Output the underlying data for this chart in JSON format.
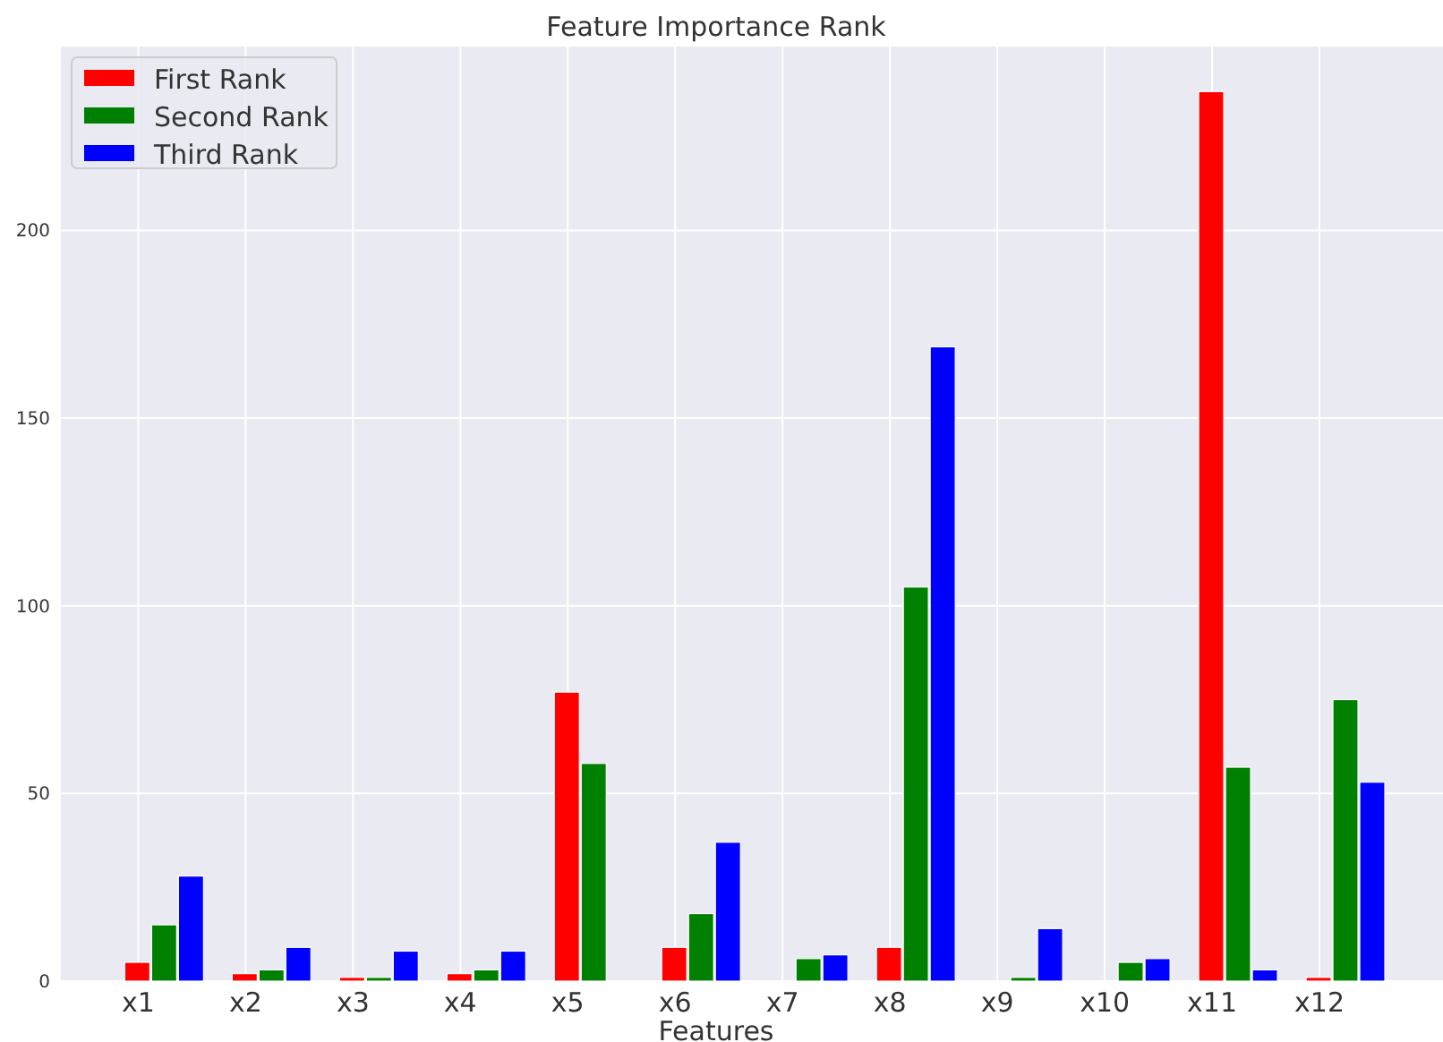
{
  "chart_data": {
    "type": "bar",
    "title": "Feature Importance Rank",
    "xlabel": "Features",
    "categories": [
      "x1",
      "x2",
      "x3",
      "x4",
      "x5",
      "x6",
      "x7",
      "x8",
      "x9",
      "x10",
      "x11",
      "x12"
    ],
    "series": [
      {
        "name": "First Rank",
        "color": "#ff0000",
        "values": [
          5,
          2,
          1,
          2,
          77,
          9,
          0,
          9,
          0,
          0,
          237,
          1
        ]
      },
      {
        "name": "Second Rank",
        "color": "#008000",
        "values": [
          15,
          3,
          1,
          3,
          58,
          18,
          6,
          105,
          1,
          5,
          57,
          75
        ]
      },
      {
        "name": "Third Rank",
        "color": "#0000ff",
        "values": [
          28,
          9,
          8,
          8,
          0,
          37,
          7,
          169,
          14,
          6,
          3,
          53
        ]
      }
    ],
    "ylim": [
      0,
      249
    ],
    "yticks": [
      0,
      50,
      100,
      150,
      200
    ],
    "grid": true,
    "legend": "top left"
  }
}
